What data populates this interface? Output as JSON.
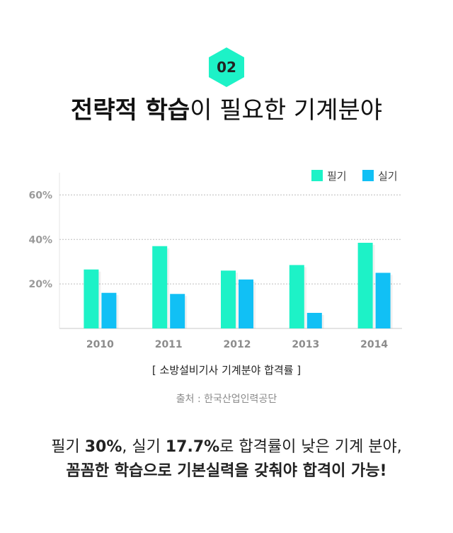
{
  "badge": {
    "number": "02",
    "color": "#1df2c7"
  },
  "heading": {
    "bold_part": "전략적 학습",
    "light_part": "이 필요한 기계분야"
  },
  "chart_data": {
    "type": "bar",
    "categories": [
      "2010",
      "2011",
      "2012",
      "2013",
      "2014"
    ],
    "series": [
      {
        "name": "필기",
        "color": "#1df2c7",
        "values": [
          26.5,
          37,
          26,
          28.5,
          38.5
        ]
      },
      {
        "name": "실기",
        "color": "#11c0f5",
        "values": [
          16,
          15.5,
          22,
          7,
          25
        ]
      }
    ],
    "y_ticks": [
      "20%",
      "40%",
      "60%"
    ],
    "y_tick_values": [
      20,
      40,
      60
    ],
    "ylim": [
      0,
      70
    ],
    "grid": true,
    "legend": "top-right"
  },
  "caption": "[ 소방설비기사 기계분야 합격률 ]",
  "source": "출처 : 한국산업인력공단",
  "summary": {
    "line1": [
      "필기 ",
      "30%",
      ", 실기 ",
      "17.7%",
      "로 합격률이 낮은 기계 분야,"
    ],
    "line2": "꼼꼼한 학습으로 기본실력을 갖춰야 합격이 가능!"
  }
}
